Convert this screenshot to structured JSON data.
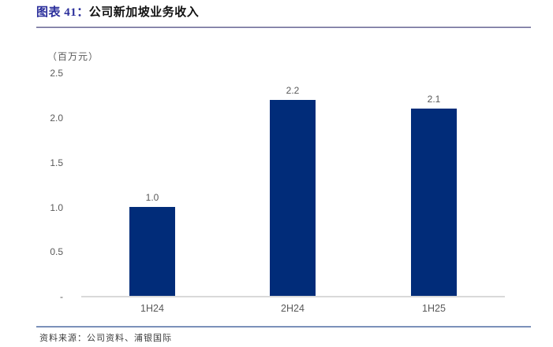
{
  "header": {
    "figure_label": "图表 41：",
    "title": "公司新加坡业务收入"
  },
  "chart_data": {
    "type": "bar",
    "title": "公司新加坡业务收入",
    "unit_label": "（百万元）",
    "categories": [
      "1H24",
      "2H24",
      "1H25"
    ],
    "values": [
      1.0,
      2.2,
      2.1
    ],
    "value_labels": [
      "1.0",
      "2.2",
      "2.1"
    ],
    "y_ticks": [
      "2.5",
      "2.0",
      "1.5",
      "1.0",
      "0.5",
      "-"
    ],
    "ylim": [
      0,
      2.5
    ],
    "xlabel": "",
    "ylabel": "百万元",
    "grid": "off",
    "legend": "none",
    "bar_color": "#012C79",
    "axis_label_color": "#595959",
    "baseline_color": "#D9D9D9"
  },
  "footer": {
    "source": "资料来源：公司资料、浦银国际"
  },
  "colors": {
    "title_accent": "#2B2F9B",
    "title_text": "#111111",
    "header_rule": "#514F80",
    "footer_rule": "#3D5B96"
  }
}
